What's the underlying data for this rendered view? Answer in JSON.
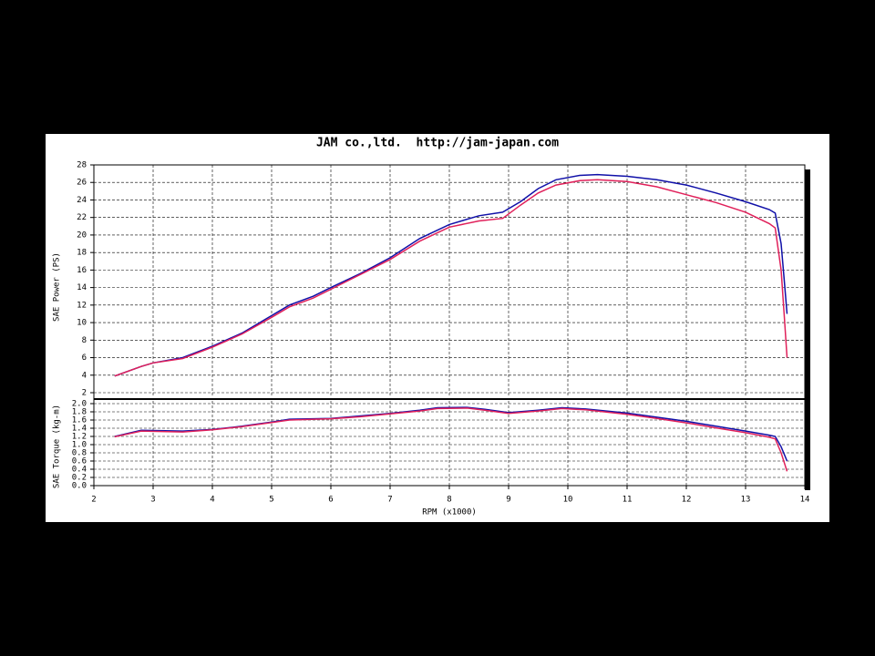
{
  "chart_data": [
    {
      "type": "line",
      "title": "JAM co.,ltd.  http://jam-japan.com",
      "ylabel": "SAE Power (PS)",
      "x": [
        2.35,
        2.8,
        3,
        3.5,
        4,
        4.5,
        5,
        5.3,
        5.7,
        6,
        6.5,
        7,
        7.5,
        8,
        8.5,
        8.9,
        9.2,
        9.5,
        9.8,
        10.2,
        10.5,
        11,
        11.5,
        12,
        12.5,
        13,
        13.4,
        13.5,
        13.6,
        13.65,
        13.7
      ],
      "series": [
        {
          "color": "#1010a8",
          "values": [
            3.9,
            5.0,
            5.4,
            6.0,
            7.3,
            8.8,
            10.8,
            12.0,
            13.0,
            14.0,
            15.6,
            17.4,
            19.6,
            21.2,
            22.2,
            22.6,
            23.8,
            25.3,
            26.3,
            26.8,
            26.9,
            26.7,
            26.3,
            25.7,
            24.8,
            23.8,
            22.9,
            22.5,
            19,
            15,
            11
          ]
        },
        {
          "color": "#e0205a",
          "values": [
            3.9,
            5.0,
            5.4,
            5.9,
            7.2,
            8.7,
            10.6,
            11.8,
            12.8,
            13.8,
            15.5,
            17.2,
            19.3,
            20.9,
            21.6,
            21.9,
            23.4,
            24.8,
            25.7,
            26.2,
            26.3,
            26.1,
            25.5,
            24.6,
            23.7,
            22.6,
            21.3,
            20.8,
            16,
            11,
            6
          ]
        }
      ],
      "xlim": [
        2,
        14
      ],
      "ylim": [
        2,
        28
      ],
      "yticks": [
        2,
        4,
        6,
        8,
        10,
        12,
        14,
        16,
        18,
        20,
        22,
        24,
        26,
        28
      ],
      "grid": true
    },
    {
      "type": "line",
      "ylabel": "SAE Torque (kg-m)",
      "xlabel": "RPM (x1000)",
      "x": [
        2.35,
        2.8,
        3.5,
        4,
        4.5,
        5,
        5.3,
        6,
        6.5,
        7,
        7.5,
        7.8,
        8.3,
        8.6,
        9,
        9.5,
        9.9,
        10.3,
        11,
        11.5,
        12,
        12.5,
        13,
        13.4,
        13.5,
        13.6,
        13.7
      ],
      "series": [
        {
          "color": "#1010a8",
          "values": [
            1.2,
            1.35,
            1.33,
            1.37,
            1.45,
            1.55,
            1.62,
            1.64,
            1.7,
            1.76,
            1.84,
            1.9,
            1.91,
            1.86,
            1.78,
            1.84,
            1.9,
            1.87,
            1.77,
            1.67,
            1.57,
            1.45,
            1.33,
            1.23,
            1.2,
            0.95,
            0.6
          ]
        },
        {
          "color": "#e0205a",
          "values": [
            1.19,
            1.33,
            1.31,
            1.36,
            1.44,
            1.54,
            1.6,
            1.63,
            1.68,
            1.75,
            1.82,
            1.88,
            1.89,
            1.84,
            1.76,
            1.82,
            1.88,
            1.85,
            1.74,
            1.64,
            1.53,
            1.41,
            1.29,
            1.18,
            1.14,
            0.8,
            0.35
          ]
        }
      ],
      "xlim": [
        2,
        14
      ],
      "xticks": [
        2,
        3,
        4,
        5,
        6,
        7,
        8,
        9,
        10,
        11,
        12,
        13,
        14
      ],
      "ylim": [
        0,
        2
      ],
      "yticks": [
        {
          "value": 0,
          "label": "0.0"
        },
        0.2,
        0.4,
        0.6,
        0.8,
        {
          "value": 1,
          "label": "1.0"
        },
        1.2,
        1.4,
        1.6,
        1.8,
        {
          "value": 2,
          "label": "2.0"
        }
      ],
      "grid": true
    }
  ]
}
